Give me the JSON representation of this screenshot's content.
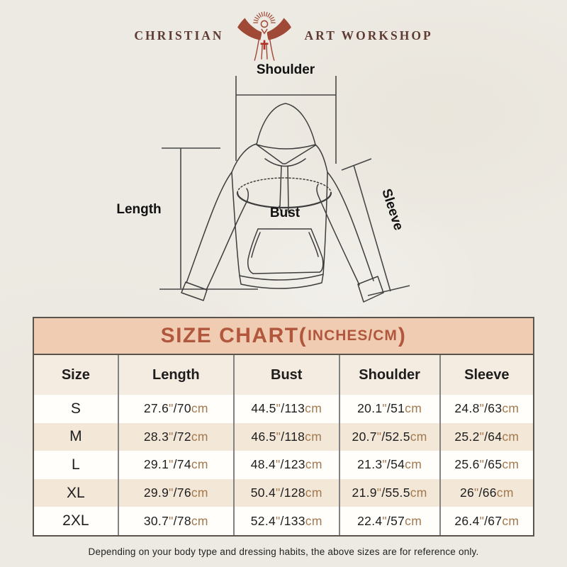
{
  "theme": {
    "page_bg": "#edeae3",
    "table_border": "#5a544d",
    "divider": "#828282",
    "title_bg": "#f0cdb2",
    "title_text": "#b1573d",
    "header_bg": "#f5ece1",
    "band_bg": "#f3e7d8",
    "row_bg": "#fffefb",
    "text_dark": "#1d1d1d",
    "unit_text": "#a3794e",
    "logo_text": "#5e3c33",
    "logo_icon": "#a04936",
    "line_color": "#3d3d3d"
  },
  "brand": {
    "name_left": "CHRISTIAN",
    "name_right": "ART WORKSHOP",
    "logo_icon": "jesus-open-arms-rays-icon"
  },
  "diagram": {
    "labels": {
      "shoulder": "Shoulder",
      "length": "Length",
      "bust": "Bust",
      "sleeve": "Sleeve"
    }
  },
  "size_chart": {
    "title": {
      "main": "SIZE CHART",
      "open": "(",
      "unit": "INCHES/CM",
      "close": ")"
    },
    "units": {
      "inch_mark": "\"",
      "slash": "/",
      "cm_label": "cm"
    }
  },
  "chart_data": {
    "type": "table",
    "title": "SIZE CHART(INCHES/CM)",
    "columns": [
      "Size",
      "Length",
      "Bust",
      "Shoulder",
      "Sleeve"
    ],
    "rows": [
      {
        "size": "S",
        "length_in": "27.6",
        "length_cm": "70",
        "bust_in": "44.5",
        "bust_cm": "113",
        "shoulder_in": "20.1",
        "shoulder_cm": "51",
        "sleeve_in": "24.8",
        "sleeve_cm": "63"
      },
      {
        "size": "M",
        "length_in": "28.3",
        "length_cm": "72",
        "bust_in": "46.5",
        "bust_cm": "118",
        "shoulder_in": "20.7",
        "shoulder_cm": "52.5",
        "sleeve_in": "25.2",
        "sleeve_cm": "64"
      },
      {
        "size": "L",
        "length_in": "29.1",
        "length_cm": "74",
        "bust_in": "48.4",
        "bust_cm": "123",
        "shoulder_in": "21.3",
        "shoulder_cm": "54",
        "sleeve_in": "25.6",
        "sleeve_cm": "65"
      },
      {
        "size": "XL",
        "length_in": "29.9",
        "length_cm": "76",
        "bust_in": "50.4",
        "bust_cm": "128",
        "shoulder_in": "21.9",
        "shoulder_cm": "55.5",
        "sleeve_in": "26",
        "sleeve_cm": "66"
      },
      {
        "size": "2XL",
        "length_in": "30.7",
        "length_cm": "78",
        "bust_in": "52.4",
        "bust_cm": "133",
        "shoulder_in": "22.4",
        "shoulder_cm": "57",
        "sleeve_in": "26.4",
        "sleeve_cm": "67"
      }
    ],
    "note": "Depending on your body type and dressing habits, the above sizes are for reference only."
  }
}
